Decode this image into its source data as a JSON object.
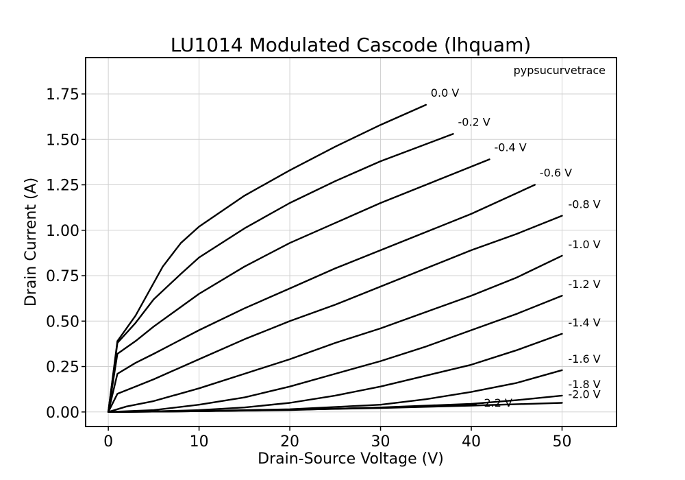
{
  "chart_data": {
    "type": "line",
    "title": "LU1014 Modulated Cascode (lhquam)",
    "watermark": "pypsucurvetrace",
    "xlabel": "Drain-Source Voltage (V)",
    "ylabel": "Drain Current (A)",
    "xlim": [
      -2.5,
      56
    ],
    "ylim": [
      -0.08,
      1.95
    ],
    "xticks": [
      0,
      10,
      20,
      30,
      40,
      50
    ],
    "xtick_labels": [
      "0",
      "10",
      "20",
      "30",
      "40",
      "50"
    ],
    "yticks": [
      0,
      0.25,
      0.5,
      0.75,
      1.0,
      1.25,
      1.5,
      1.75
    ],
    "ytick_labels": [
      "0.00",
      "0.25",
      "0.50",
      "0.75",
      "1.00",
      "1.25",
      "1.50",
      "1.75"
    ],
    "grid": true,
    "series": [
      {
        "name": "0.0 V",
        "x": [
          0,
          1,
          3,
          6,
          8,
          10,
          15,
          20,
          25,
          30,
          35
        ],
        "y": [
          0,
          0.39,
          0.53,
          0.8,
          0.93,
          1.02,
          1.19,
          1.33,
          1.46,
          1.58,
          1.69
        ]
      },
      {
        "name": "-0.2 V",
        "x": [
          0,
          1,
          3,
          5,
          8,
          10,
          15,
          20,
          25,
          30,
          38
        ],
        "y": [
          0,
          0.38,
          0.49,
          0.62,
          0.76,
          0.85,
          1.01,
          1.15,
          1.27,
          1.38,
          1.53
        ]
      },
      {
        "name": "-0.4 V",
        "x": [
          0,
          1,
          3,
          5,
          10,
          15,
          20,
          25,
          30,
          35,
          42
        ],
        "y": [
          0,
          0.32,
          0.39,
          0.47,
          0.65,
          0.8,
          0.93,
          1.04,
          1.15,
          1.25,
          1.39
        ]
      },
      {
        "name": "-0.6 V",
        "x": [
          0,
          1,
          3,
          5,
          10,
          15,
          20,
          25,
          30,
          35,
          40,
          47
        ],
        "y": [
          0,
          0.21,
          0.27,
          0.32,
          0.45,
          0.57,
          0.68,
          0.79,
          0.89,
          0.99,
          1.09,
          1.25
        ]
      },
      {
        "name": "-0.8 V",
        "x": [
          0,
          1,
          3,
          5,
          10,
          15,
          20,
          25,
          30,
          35,
          40,
          45,
          50
        ],
        "y": [
          0,
          0.1,
          0.14,
          0.18,
          0.29,
          0.4,
          0.5,
          0.59,
          0.69,
          0.79,
          0.89,
          0.98,
          1.08
        ]
      },
      {
        "name": "-1.0 V",
        "x": [
          0,
          2,
          5,
          10,
          15,
          20,
          25,
          30,
          35,
          40,
          45,
          50
        ],
        "y": [
          0,
          0.03,
          0.06,
          0.13,
          0.21,
          0.29,
          0.38,
          0.46,
          0.55,
          0.64,
          0.74,
          0.86
        ]
      },
      {
        "name": "-1.2 V",
        "x": [
          0,
          5,
          10,
          15,
          20,
          25,
          30,
          35,
          40,
          45,
          50
        ],
        "y": [
          0,
          0.01,
          0.04,
          0.08,
          0.14,
          0.21,
          0.28,
          0.36,
          0.45,
          0.54,
          0.64
        ]
      },
      {
        "name": "-1.4 V",
        "x": [
          0,
          5,
          10,
          15,
          20,
          25,
          30,
          35,
          40,
          45,
          50
        ],
        "y": [
          0,
          0.003,
          0.01,
          0.025,
          0.05,
          0.09,
          0.14,
          0.2,
          0.26,
          0.34,
          0.43
        ]
      },
      {
        "name": "-1.6 V",
        "x": [
          0,
          10,
          20,
          30,
          35,
          40,
          45,
          50
        ],
        "y": [
          0,
          0.005,
          0.015,
          0.04,
          0.07,
          0.11,
          0.16,
          0.23
        ]
      },
      {
        "name": "-1.8 V",
        "x": [
          0,
          10,
          20,
          30,
          40,
          45,
          50
        ],
        "y": [
          0,
          0.004,
          0.01,
          0.025,
          0.045,
          0.065,
          0.09
        ]
      },
      {
        "name": "-2.0 V",
        "x": [
          0,
          10,
          20,
          30,
          40,
          50
        ],
        "y": [
          0,
          0.004,
          0.012,
          0.022,
          0.035,
          0.05
        ]
      },
      {
        "name": "-2.2 V",
        "x": [
          0,
          10,
          20,
          30,
          40.5
        ],
        "y": [
          0,
          0.004,
          0.012,
          0.024,
          0.04
        ]
      }
    ]
  }
}
